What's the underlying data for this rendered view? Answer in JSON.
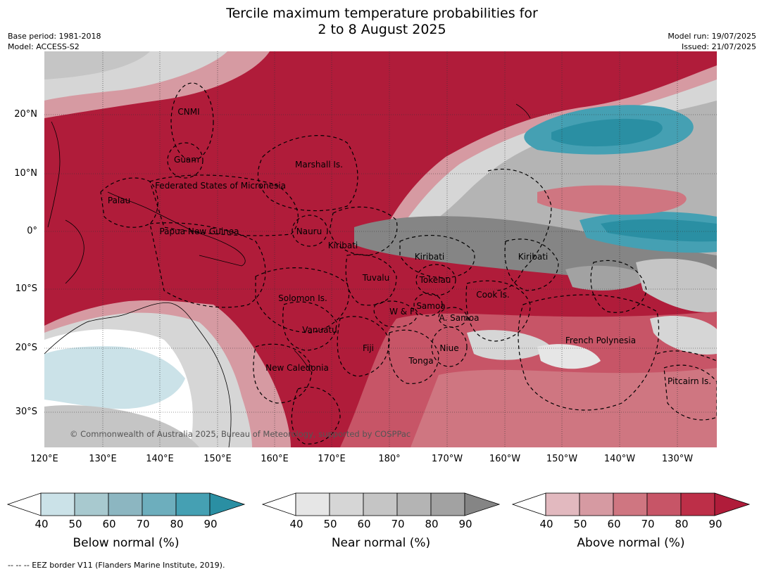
{
  "title_line1": "Tercile maximum temperature probabilities for",
  "title_line2": "2 to 8 August 2025",
  "meta_left": [
    "Base period: 1981-2018",
    "Model: ACCESS-S2"
  ],
  "meta_right": [
    "Model run: 19/07/2025",
    "Issued: 21/07/2025"
  ],
  "lat_labels": [
    "20°N",
    "10°N",
    "0°",
    "10°S",
    "20°S",
    "30°S"
  ],
  "lon_labels": [
    "120°E",
    "130°E",
    "140°E",
    "150°E",
    "160°E",
    "170°E",
    "180°",
    "170°W",
    "160°W",
    "150°W",
    "140°W",
    "130°W"
  ],
  "copyright": "© Commonwealth of Australia 2025, Bureau of Meteorology, supported by COSPPac",
  "regions": [
    {
      "name": "CNMI"
    },
    {
      "name": "Guam"
    },
    {
      "name": "Marshall Is."
    },
    {
      "name": "Palau"
    },
    {
      "name": "Federated States of Micronesia"
    },
    {
      "name": "Papua New Guinea"
    },
    {
      "name": "Nauru"
    },
    {
      "name": "Kiribati"
    },
    {
      "name": "Kiribati"
    },
    {
      "name": "Kiribati"
    },
    {
      "name": "Tuvalu"
    },
    {
      "name": "Tokelau"
    },
    {
      "name": "Cook Is."
    },
    {
      "name": "Solomon Is."
    },
    {
      "name": "W & F"
    },
    {
      "name": "Samoa"
    },
    {
      "name": "A. Samoa"
    },
    {
      "name": "Vanuatu"
    },
    {
      "name": "Fiji"
    },
    {
      "name": "Niue"
    },
    {
      "name": "French Polynesia"
    },
    {
      "name": "Tonga"
    },
    {
      "name": "New Caledonia"
    },
    {
      "name": "Pitcairn Is."
    }
  ],
  "colorbars": [
    {
      "label": "Below normal (%)",
      "ticks": [
        "40",
        "50",
        "60",
        "70",
        "80",
        "90"
      ],
      "colors": [
        "#cbe2e8",
        "#a8c9cf",
        "#8cb6c1",
        "#6daebd",
        "#45a0b3",
        "#2a8fa3"
      ]
    },
    {
      "label": "Near normal (%)",
      "ticks": [
        "40",
        "50",
        "60",
        "70",
        "80",
        "90"
      ],
      "colors": [
        "#e6e6e6",
        "#d6d6d6",
        "#c5c5c5",
        "#b4b4b4",
        "#a2a2a2",
        "#858585"
      ]
    },
    {
      "label": "Above normal (%)",
      "ticks": [
        "40",
        "50",
        "60",
        "70",
        "80",
        "90"
      ],
      "colors": [
        "#e2b9bf",
        "#d69aa2",
        "#cf7681",
        "#c75567",
        "#bd2f48",
        "#b01c3a"
      ]
    }
  ],
  "footer": "--  --  -- EEZ border V11 (Flanders Marine Institute, 2019)."
}
